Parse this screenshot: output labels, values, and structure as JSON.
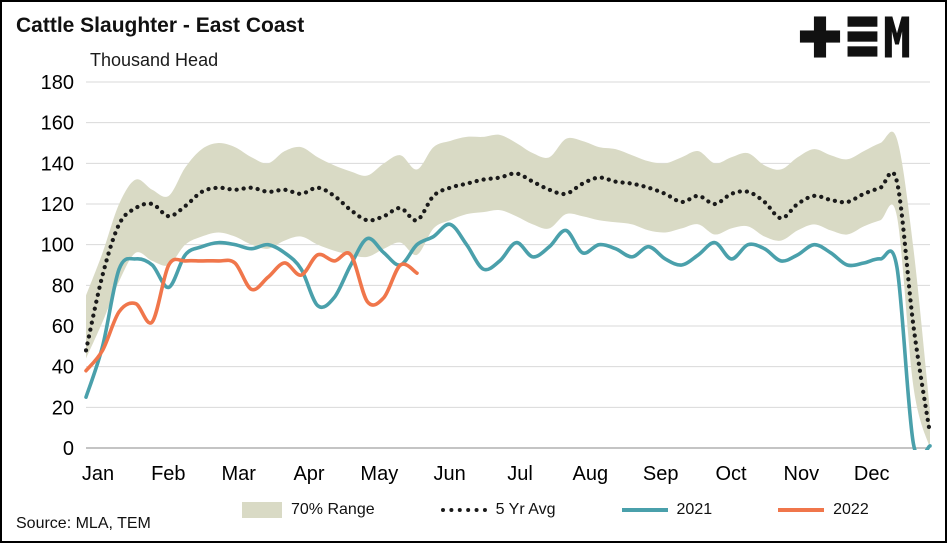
{
  "header": {
    "title": "Cattle Slaughter - East Coast",
    "subtitle": "Thousand Head",
    "logo_name": "TEM logo"
  },
  "footer": {
    "source": "Source: MLA, TEM"
  },
  "legend": [
    {
      "label": "70% Range",
      "type": "band"
    },
    {
      "label": "5 Yr Avg",
      "type": "dotted"
    },
    {
      "label": "2021",
      "type": "line"
    },
    {
      "label": "2022",
      "type": "line"
    }
  ],
  "colors": {
    "band": "#d9dac5",
    "avg": "#1a1a1a",
    "y2021": "#4aa0ab",
    "y2022": "#f0764b",
    "grid": "#d9d9d9",
    "axis": "#b0b0b0",
    "logo": "#111111"
  },
  "chart_data": {
    "type": "line",
    "title": "Cattle Slaughter - East Coast",
    "ylabel": "Thousand Head",
    "source": "Source: MLA, TEM",
    "ylim": [
      0,
      180
    ],
    "y_ticks": [
      0,
      20,
      40,
      60,
      80,
      100,
      120,
      140,
      160,
      180
    ],
    "x_tick_labels": [
      "Jan",
      "Feb",
      "Mar",
      "Apr",
      "May",
      "Jun",
      "Jul",
      "Aug",
      "Sep",
      "Oct",
      "Nov",
      "Dec"
    ],
    "x_unit": "weekly points spanning one year",
    "grid": true,
    "legend_position": "bottom",
    "band": {
      "name": "70% Range",
      "color": "#d9dac5",
      "upper": [
        75,
        96,
        120,
        132,
        127,
        124,
        138,
        147,
        150,
        148,
        143,
        140,
        146,
        148,
        143,
        139,
        136,
        134,
        140,
        144,
        137,
        148,
        151,
        153,
        153,
        154,
        150,
        145,
        143,
        152,
        151,
        148,
        147,
        144,
        141,
        140,
        143,
        146,
        140,
        143,
        145,
        139,
        137,
        143,
        147,
        144,
        142,
        146,
        150,
        152,
        98,
        18
      ],
      "lower": [
        44,
        62,
        82,
        96,
        92,
        90,
        100,
        104,
        106,
        104,
        100,
        98,
        102,
        104,
        100,
        97,
        95,
        94,
        98,
        101,
        95,
        108,
        112,
        115,
        116,
        117,
        114,
        110,
        108,
        115,
        114,
        112,
        111,
        110,
        107,
        106,
        108,
        110,
        105,
        108,
        109,
        104,
        102,
        107,
        110,
        107,
        105,
        109,
        112,
        114,
        30,
        0
      ]
    },
    "series": [
      {
        "name": "5 Yr Avg",
        "style": "dotted",
        "color": "#1a1a1a",
        "values": [
          48,
          85,
          110,
          118,
          120,
          114,
          119,
          126,
          128,
          127,
          128,
          126,
          127,
          125,
          128,
          124,
          117,
          112,
          114,
          118,
          112,
          124,
          128,
          130,
          132,
          133,
          135,
          131,
          127,
          125,
          130,
          133,
          131,
          130,
          128,
          125,
          121,
          124,
          120,
          125,
          126,
          121,
          113,
          120,
          124,
          122,
          121,
          125,
          128,
          131,
          60,
          7
        ]
      },
      {
        "name": "2021",
        "style": "solid",
        "color": "#4aa0ab",
        "values": [
          25,
          50,
          88,
          93,
          90,
          79,
          95,
          99,
          101,
          100,
          98,
          100,
          96,
          88,
          70,
          74,
          90,
          103,
          96,
          90,
          100,
          104,
          110,
          100,
          88,
          92,
          101,
          94,
          99,
          107,
          96,
          100,
          98,
          94,
          99,
          93,
          90,
          95,
          101,
          93,
          100,
          98,
          92,
          95,
          100,
          96,
          90,
          91,
          93,
          89,
          2,
          1
        ]
      },
      {
        "name": "2022",
        "style": "solid",
        "color": "#f0764b",
        "values": [
          38,
          48,
          67,
          71,
          62,
          90,
          92,
          92,
          92,
          91,
          78,
          84,
          91,
          85,
          95,
          92,
          95,
          72,
          74,
          90,
          86
        ]
      }
    ]
  }
}
